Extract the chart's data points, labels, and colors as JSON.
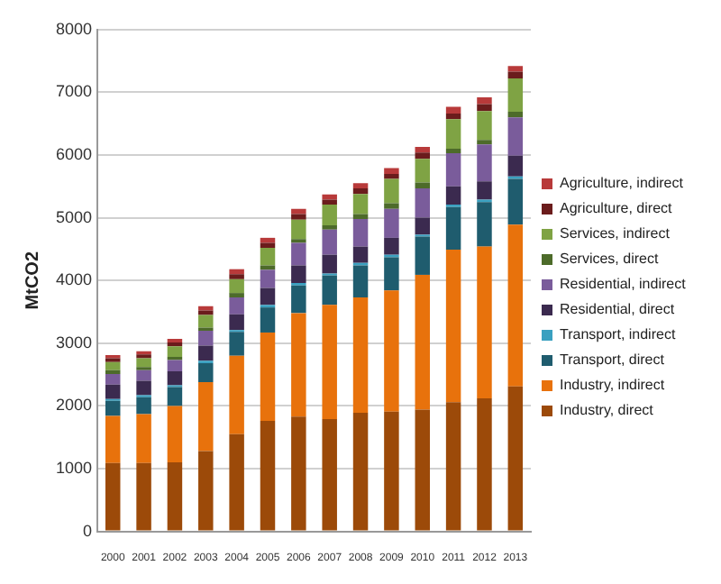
{
  "chart_data": {
    "type": "bar",
    "stacked": true,
    "ylabel": "MtCO2",
    "ylim": [
      0,
      8000
    ],
    "yticks": [
      0,
      1000,
      2000,
      3000,
      4000,
      5000,
      6000,
      7000,
      8000
    ],
    "grid": "y",
    "legend": "right",
    "categories": [
      "2000",
      "2001",
      "2002",
      "2003",
      "2004",
      "2005",
      "2006",
      "2007",
      "2008",
      "2009",
      "2010",
      "2011",
      "2012",
      "2013"
    ],
    "series": [
      {
        "name": "Industry, direct",
        "color": "#9c4a09",
        "values": [
          1090,
          1090,
          1100,
          1280,
          1550,
          1760,
          1830,
          1790,
          1890,
          1910,
          1940,
          2060,
          2120,
          2310
        ]
      },
      {
        "name": "Industry, indirect",
        "color": "#e8720c",
        "values": [
          750,
          780,
          900,
          1100,
          1250,
          1410,
          1650,
          1820,
          1840,
          1930,
          2150,
          2430,
          2420,
          2580
        ]
      },
      {
        "name": "Transport, direct",
        "color": "#1f5c6e",
        "values": [
          240,
          270,
          300,
          300,
          380,
          400,
          440,
          470,
          510,
          530,
          610,
          680,
          710,
          730
        ]
      },
      {
        "name": "Transport, indirect",
        "color": "#3aa0c0",
        "values": [
          30,
          30,
          30,
          40,
          30,
          40,
          40,
          30,
          40,
          40,
          30,
          40,
          40,
          40
        ]
      },
      {
        "name": "Residential, direct",
        "color": "#3b2a4f",
        "values": [
          230,
          230,
          220,
          240,
          250,
          270,
          280,
          300,
          260,
          270,
          270,
          290,
          290,
          330
        ]
      },
      {
        "name": "Residential, indirect",
        "color": "#7a5c9b",
        "values": [
          170,
          170,
          180,
          240,
          270,
          290,
          360,
          400,
          440,
          460,
          470,
          530,
          590,
          610
        ]
      },
      {
        "name": "Services, direct",
        "color": "#4d6b2a",
        "values": [
          60,
          50,
          50,
          50,
          70,
          70,
          60,
          70,
          80,
          90,
          90,
          70,
          70,
          90
        ]
      },
      {
        "name": "Services, indirect",
        "color": "#7fa344",
        "values": [
          130,
          140,
          170,
          200,
          220,
          280,
          310,
          330,
          320,
          390,
          380,
          470,
          460,
          530
        ]
      },
      {
        "name": "Agriculture, direct",
        "color": "#6b1c1c",
        "values": [
          60,
          60,
          60,
          70,
          80,
          80,
          90,
          80,
          90,
          80,
          100,
          90,
          110,
          110
        ]
      },
      {
        "name": "Agriculture, indirect",
        "color": "#b83a3a",
        "values": [
          50,
          50,
          60,
          70,
          80,
          80,
          80,
          80,
          80,
          90,
          90,
          110,
          110,
          90
        ]
      }
    ]
  }
}
